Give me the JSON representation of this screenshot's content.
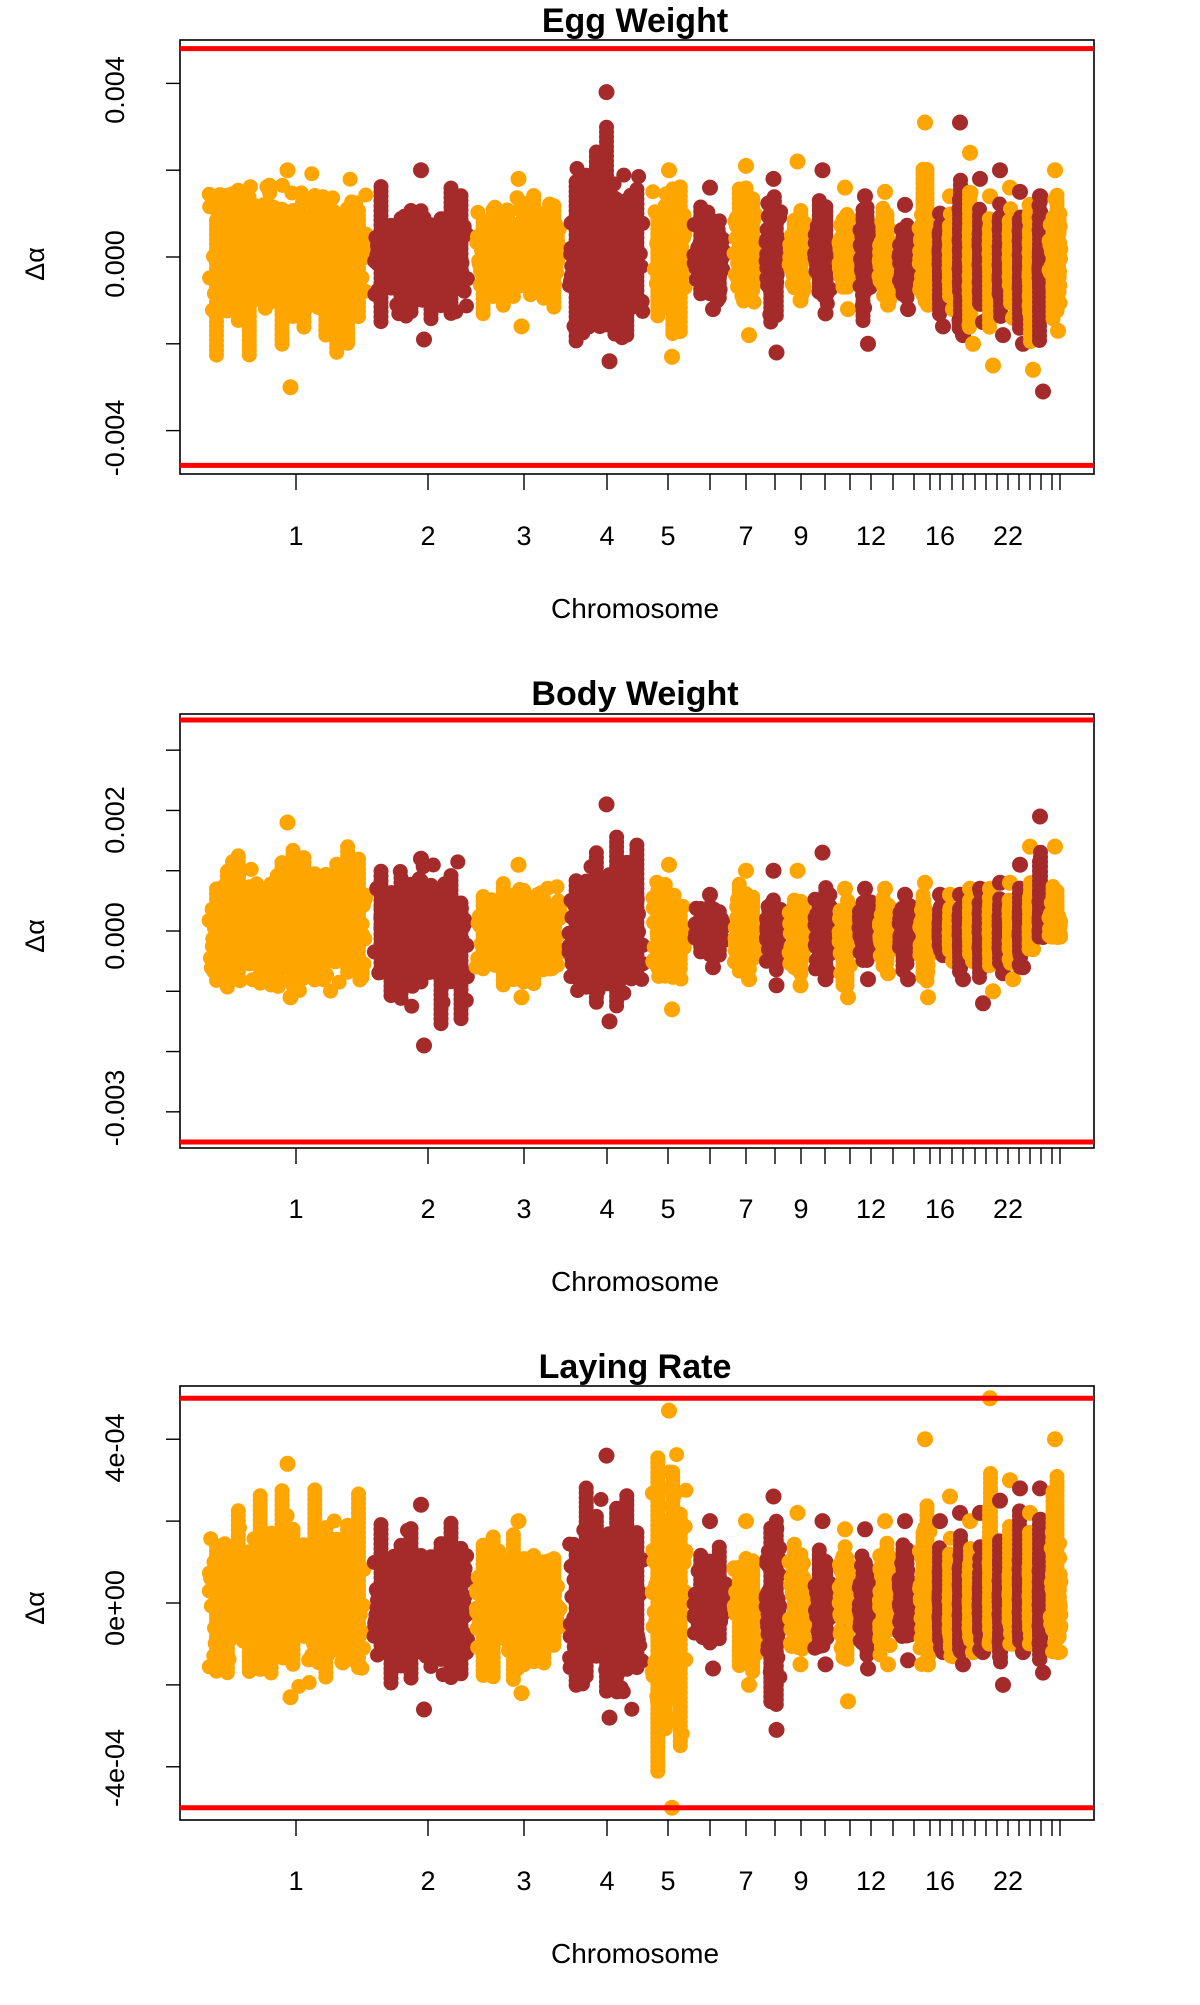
{
  "chart_data": [
    {
      "type": "scatter",
      "title": "Egg Weight",
      "xlabel": "Chromosome",
      "ylabel": "Δα",
      "ylim": [
        -0.005,
        0.005
      ],
      "y_ticks": [
        "-0.004",
        "0.000",
        "0.004"
      ],
      "y_tick_values": [
        -0.004,
        -0.002,
        0,
        0.002,
        0.004
      ],
      "threshold": 0.0048,
      "grid": false,
      "legend": "none",
      "colors": [
        "#FFA500",
        "#A52A2A"
      ],
      "threshold_color": "#FF0000",
      "x_tick_labels": [
        "1",
        "2",
        "3",
        "4",
        "5",
        "7",
        "9",
        "12",
        "16",
        "22"
      ],
      "series": [
        {
          "values": [
            [
              1,
              0.0002,
              0.002,
              -0.003
            ],
            [
              2,
              0.0,
              0.002,
              -0.0019
            ],
            [
              3,
              0.0002,
              0.0018,
              -0.0016
            ],
            [
              4,
              0.0,
              0.0038,
              -0.0024
            ],
            [
              5,
              0.0002,
              0.002,
              -0.0023
            ],
            [
              6,
              0.0,
              0.0016,
              -0.0012
            ],
            [
              7,
              0.0001,
              0.0021,
              -0.0018
            ],
            [
              8,
              0.0001,
              0.0018,
              -0.0022
            ],
            [
              9,
              0.0001,
              0.0022,
              -0.001
            ],
            [
              10,
              0.0,
              0.002,
              -0.0013
            ],
            [
              11,
              0.0,
              0.0016,
              -0.0012
            ],
            [
              12,
              0.0,
              0.0014,
              -0.002
            ],
            [
              13,
              0.0,
              0.0015,
              -0.0011
            ],
            [
              14,
              0.0,
              0.0012,
              -0.0012
            ],
            [
              15,
              0.0001,
              0.0031,
              -0.0011
            ],
            [
              16,
              0.0,
              0.001,
              -0.0016
            ],
            [
              17,
              0.0001,
              0.0014,
              -0.0012
            ],
            [
              18,
              0.0,
              0.0031,
              -0.0018
            ],
            [
              19,
              0.0,
              0.0024,
              -0.002
            ],
            [
              20,
              0.0,
              0.0018,
              -0.0015
            ],
            [
              21,
              0.0,
              0.0014,
              -0.0025
            ],
            [
              22,
              0.0,
              0.002,
              -0.0018
            ],
            [
              23,
              0.0,
              0.0016,
              -0.0014
            ],
            [
              24,
              0.0,
              0.0015,
              -0.002
            ],
            [
              25,
              0.0,
              0.0012,
              -0.0026
            ],
            [
              26,
              0.0,
              0.0014,
              -0.0031
            ],
            [
              27,
              0.0,
              0.002,
              -0.0017
            ]
          ]
        }
      ]
    },
    {
      "type": "scatter",
      "title": "Body Weight",
      "xlabel": "Chromosome",
      "ylabel": "Δα",
      "ylim": [
        -0.0036,
        0.0036
      ],
      "y_ticks": [
        "-0.003",
        "0.000",
        "0.002"
      ],
      "y_tick_values": [
        -0.003,
        -0.002,
        -0.001,
        0,
        0.001,
        0.002,
        0.003
      ],
      "threshold": 0.0035,
      "grid": false,
      "legend": "none",
      "colors": [
        "#FFA500",
        "#A52A2A"
      ],
      "threshold_color": "#FF0000",
      "x_tick_labels": [
        "1",
        "2",
        "3",
        "4",
        "5",
        "7",
        "9",
        "12",
        "16",
        "22"
      ],
      "series": [
        {
          "values": [
            [
              1,
              0.0,
              0.0018,
              -0.0011
            ],
            [
              2,
              0.0,
              0.0012,
              -0.0019
            ],
            [
              3,
              0.0,
              0.0011,
              -0.0011
            ],
            [
              4,
              0.0,
              0.0021,
              -0.0015
            ],
            [
              5,
              0.0,
              0.0011,
              -0.0013
            ],
            [
              6,
              0.0,
              0.0006,
              -0.0006
            ],
            [
              7,
              0.0,
              0.001,
              -0.0008
            ],
            [
              8,
              0.0,
              0.001,
              -0.0009
            ],
            [
              9,
              0.0,
              0.001,
              -0.0009
            ],
            [
              10,
              0.0,
              0.0013,
              -0.0008
            ],
            [
              11,
              0.0,
              0.0007,
              -0.0011
            ],
            [
              12,
              0.0,
              0.0007,
              -0.0008
            ],
            [
              13,
              0.0,
              0.0007,
              -0.0007
            ],
            [
              14,
              0.0,
              0.0006,
              -0.0008
            ],
            [
              15,
              0.0,
              0.0008,
              -0.0011
            ],
            [
              16,
              0.0,
              0.0006,
              -0.0004
            ],
            [
              17,
              0.0,
              0.0006,
              -0.0005
            ],
            [
              18,
              0.0,
              0.0006,
              -0.0008
            ],
            [
              19,
              0.0,
              0.0007,
              -0.0005
            ],
            [
              20,
              0.0,
              0.0007,
              -0.0012
            ],
            [
              21,
              0.0,
              0.0007,
              -0.001
            ],
            [
              22,
              0.0,
              0.0008,
              -0.0007
            ],
            [
              23,
              0.0,
              0.0008,
              -0.0008
            ],
            [
              24,
              0.0,
              0.0011,
              -0.0006
            ],
            [
              25,
              0.0,
              0.0014,
              -0.0003
            ],
            [
              26,
              0.0,
              0.0019,
              -0.0001
            ],
            [
              27,
              0.0,
              0.0014,
              -0.0001
            ]
          ]
        }
      ]
    },
    {
      "type": "scatter",
      "title": "Laying Rate",
      "xlabel": "Chromosome",
      "ylabel": "Δα",
      "ylim": [
        -0.00053,
        0.00053
      ],
      "y_ticks": [
        "-4e-04",
        "0e+00",
        "4e-04"
      ],
      "y_tick_values": [
        -0.0004,
        -0.0002,
        0,
        0.0002,
        0.0004
      ],
      "threshold": 0.0005,
      "grid": false,
      "legend": "none",
      "colors": [
        "#FFA500",
        "#A52A2A"
      ],
      "threshold_color": "#FF0000",
      "x_tick_labels": [
        "1",
        "2",
        "3",
        "4",
        "5",
        "7",
        "9",
        "12",
        "16",
        "22"
      ],
      "series": [
        {
          "values": [
            [
              1,
              0.0,
              0.00034,
              -0.00023
            ],
            [
              2,
              0.0,
              0.00024,
              -0.00026
            ],
            [
              3,
              0.0,
              0.0002,
              -0.00022
            ],
            [
              4,
              0.0,
              0.00036,
              -0.00028
            ],
            [
              5,
              0.0,
              0.00047,
              -0.0005
            ],
            [
              6,
              0.0,
              0.0002,
              -0.00016
            ],
            [
              7,
              0.0,
              0.0002,
              -0.0002
            ],
            [
              8,
              0.0,
              0.00026,
              -0.00031
            ],
            [
              9,
              0.0,
              0.00022,
              -0.00015
            ],
            [
              10,
              0.0,
              0.0002,
              -0.00015
            ],
            [
              11,
              0.0,
              0.00018,
              -0.00024
            ],
            [
              12,
              0.0,
              0.00018,
              -0.00016
            ],
            [
              13,
              0.0,
              0.0002,
              -0.00015
            ],
            [
              14,
              0.0,
              0.0002,
              -0.00014
            ],
            [
              15,
              0.0,
              0.0004,
              -0.00015
            ],
            [
              16,
              0.0,
              0.0002,
              -0.00012
            ],
            [
              17,
              0.0,
              0.00026,
              -0.00013
            ],
            [
              18,
              0.0,
              0.00022,
              -0.00015
            ],
            [
              19,
              0.0,
              0.0002,
              -0.00012
            ],
            [
              20,
              0.0,
              0.00022,
              -0.00012
            ],
            [
              21,
              0.0,
              0.0005,
              -0.0001
            ],
            [
              22,
              0.0,
              0.00025,
              -0.0002
            ],
            [
              23,
              0.0,
              0.0003,
              -0.0001
            ],
            [
              24,
              0.0,
              0.00028,
              -0.00012
            ],
            [
              25,
              0.0,
              0.00022,
              -0.0001
            ],
            [
              26,
              0.0,
              0.00028,
              -0.00017
            ],
            [
              27,
              0.0,
              0.0004,
              -0.00012
            ]
          ]
        }
      ]
    }
  ]
}
